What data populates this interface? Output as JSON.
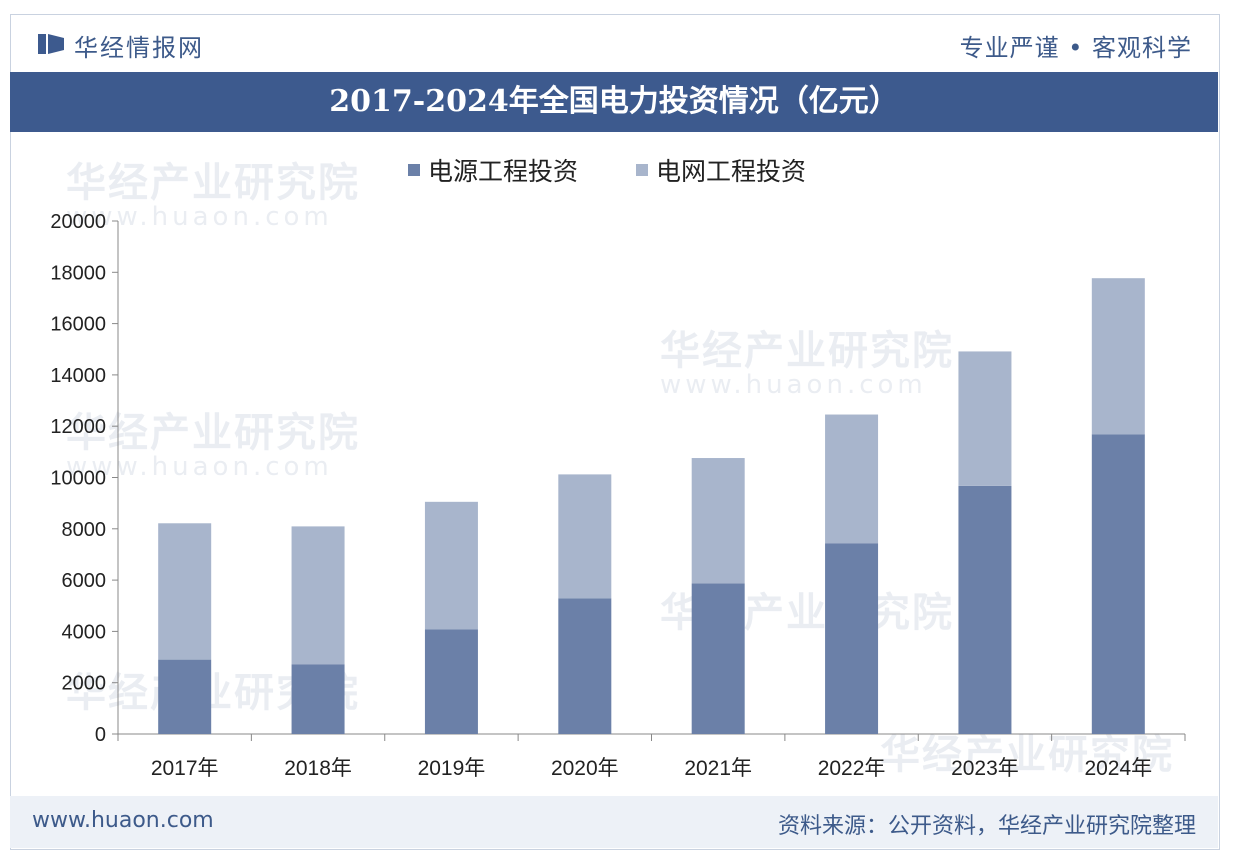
{
  "header": {
    "brand": "华经情报网",
    "slogan": "专业严谨 • 客观科学"
  },
  "watermark": {
    "text": "华经产业研究院",
    "url": "www.huaon.com"
  },
  "footer": {
    "url": "www.huaon.com",
    "source": "资料来源：公开资料，华经产业研究院整理"
  },
  "colors": {
    "brand": "#3d5a8e",
    "series1": "#6b80a8",
    "series2": "#a8b5cc",
    "axis": "#888888"
  },
  "chart_data": {
    "type": "bar",
    "stacked": true,
    "title": "2017-2024年全国电力投资情况（亿元）",
    "categories": [
      "2017年",
      "2018年",
      "2019年",
      "2020年",
      "2021年",
      "2022年",
      "2023年",
      "2024年"
    ],
    "series": [
      {
        "name": "电源工程投资",
        "values": [
          2900,
          2721,
          4075,
          5292,
          5870,
          7427,
          9675,
          11687
        ]
      },
      {
        "name": "电网工程投资",
        "values": [
          5315,
          5373,
          4977,
          4829,
          4889,
          5028,
          5240,
          6083
        ]
      }
    ],
    "yticks": [
      "0",
      "2000",
      "4000",
      "6000",
      "8000",
      "10000",
      "12000",
      "14000",
      "16000",
      "18000",
      "20000"
    ],
    "ylim": [
      0,
      20000
    ],
    "legend": "top-center",
    "grid": false
  }
}
